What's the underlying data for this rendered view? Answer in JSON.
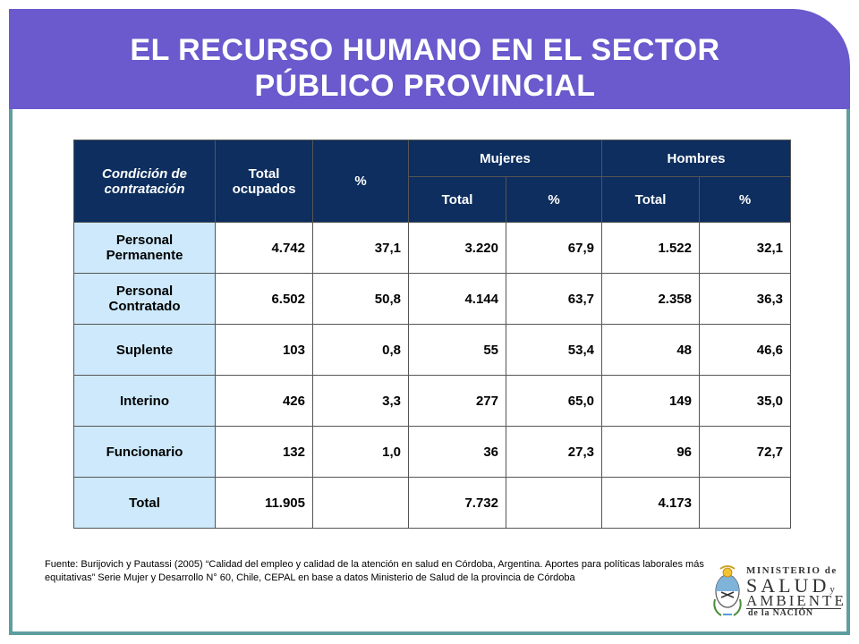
{
  "title": {
    "line1": "EL RECURSO HUMANO EN EL SECTOR",
    "line2": "PÚBLICO PROVINCIAL"
  },
  "table": {
    "headers": {
      "condicion": "Condición de contratación",
      "total_ocupados": "Total ocupados",
      "pct": "%",
      "mujeres": "Mujeres",
      "hombres": "Hombres",
      "m_total": "Total",
      "m_pct": "%",
      "h_total": "Total",
      "h_pct": "%"
    },
    "rows": [
      {
        "label": "Personal Permanente",
        "total": "4.742",
        "pct": "37,1",
        "m_total": "3.220",
        "m_pct": "67,9",
        "h_total": "1.522",
        "h_pct": "32,1"
      },
      {
        "label": "Personal Contratado",
        "total": "6.502",
        "pct": "50,8",
        "m_total": "4.144",
        "m_pct": "63,7",
        "h_total": "2.358",
        "h_pct": "36,3"
      },
      {
        "label": "Suplente",
        "total": "103",
        "pct": "0,8",
        "m_total": "55",
        "m_pct": "53,4",
        "h_total": "48",
        "h_pct": "46,6"
      },
      {
        "label": "Interino",
        "total": "426",
        "pct": "3,3",
        "m_total": "277",
        "m_pct": "65,0",
        "h_total": "149",
        "h_pct": "35,0"
      },
      {
        "label": "Funcionario",
        "total": "132",
        "pct": "1,0",
        "m_total": "36",
        "m_pct": "27,3",
        "h_total": "96",
        "h_pct": "72,7"
      },
      {
        "label": "Total",
        "total": "11.905",
        "pct": "",
        "m_total": "7.732",
        "m_pct": "",
        "h_total": "4.173",
        "h_pct": ""
      }
    ]
  },
  "source": "Fuente: Burijovich  y Pautassi  (2005)  “Calidad del empleo y calidad de la atención en salud en Córdoba, Argentina. Aportes para políticas laborales más equitativas” Serie Mujer y Desarrollo N° 60, Chile, CEPAL en base a datos Ministerio de Salud de la provincia de Córdoba",
  "logo": {
    "line1": "MINISTERIO de",
    "line2": "SALUD",
    "line2_suffix": "y",
    "line3": "AMBIENTE",
    "line4": "de la NACIÓN",
    "icon": "argentina-coat-of-arms-icon"
  },
  "colors": {
    "title_bar": "#6a5acd",
    "header_bg": "#0d2e5e",
    "row_label_bg": "#cde9fb",
    "frame": "#5f9ea0"
  }
}
